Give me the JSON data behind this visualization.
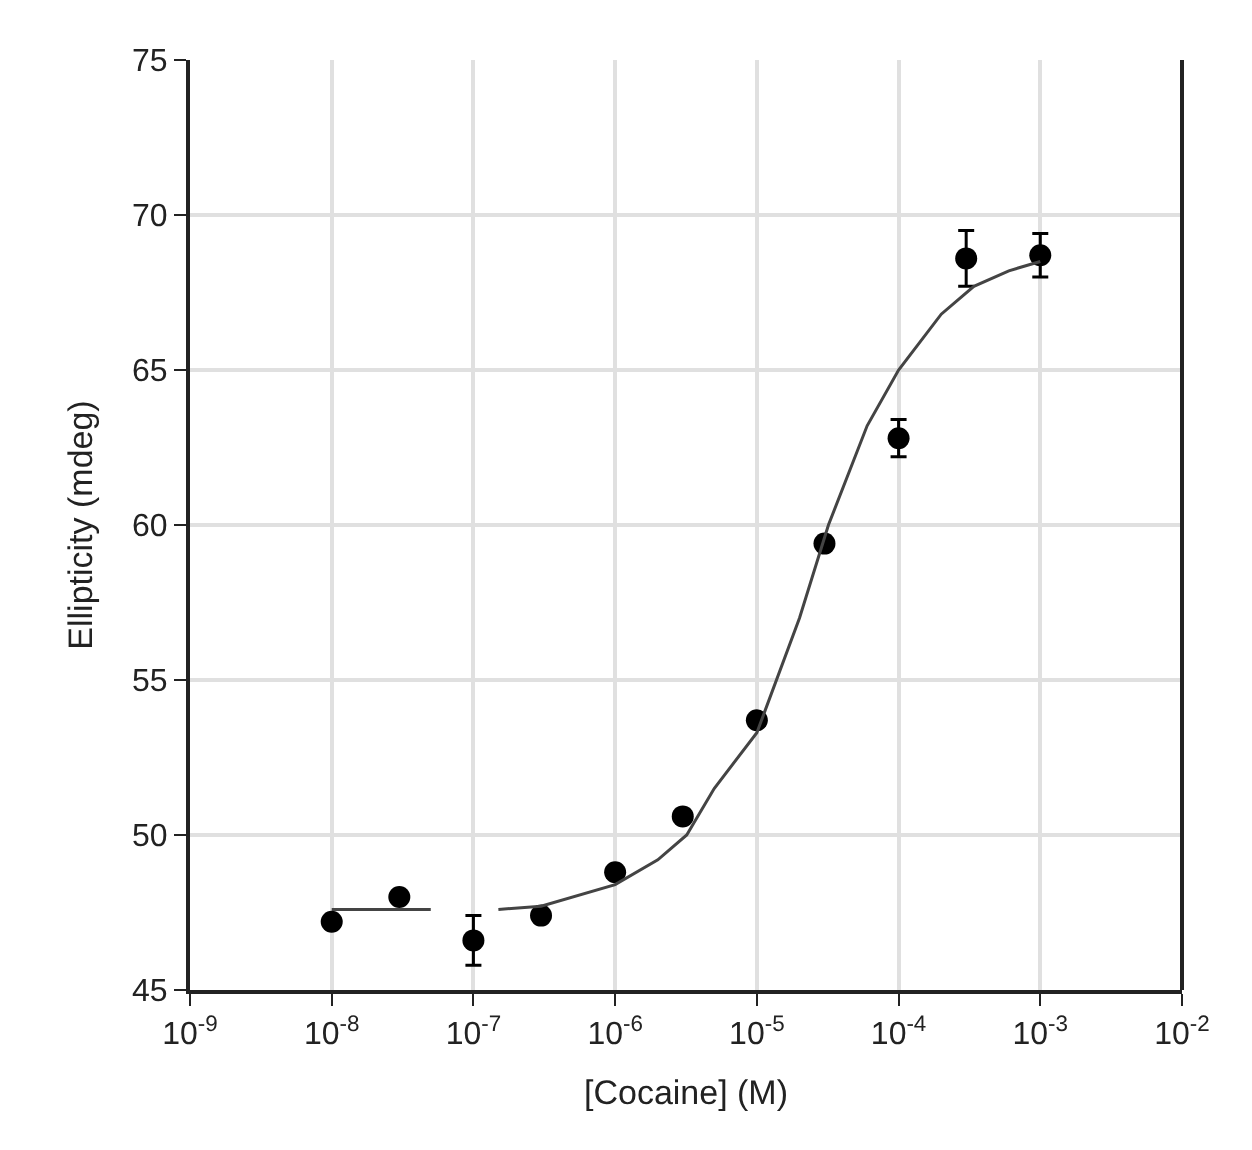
{
  "chart_data": {
    "type": "scatter",
    "xlabel": "[Cocaine] (M)",
    "ylabel": "Ellipticity (mdeg)",
    "log": "x",
    "grid": true,
    "marker": "circle",
    "xlim": [
      1e-09,
      0.01
    ],
    "xticks": [
      {
        "value": 1e-09,
        "label": "10$^{-9}$"
      },
      {
        "value": 1e-08,
        "label": "10$^{-8}$"
      },
      {
        "value": 1e-07,
        "label": "10$^{-7}$"
      },
      {
        "value": 1e-06,
        "label": "10$^{-6}$"
      },
      {
        "value": 1e-05,
        "label": "10$^{-5}$"
      },
      {
        "value": 0.0001,
        "label": "10$^{-4}$"
      },
      {
        "value": 0.001,
        "label": "10$^{-3}$"
      },
      {
        "value": 0.01,
        "label": "10$^{-2}$"
      }
    ],
    "ylim": [
      45,
      75
    ],
    "yticks": [
      45,
      50,
      55,
      60,
      65,
      70,
      75
    ],
    "series": [
      {
        "color": "#000000",
        "x": [
          1e-08,
          3e-08,
          1e-07,
          3e-07,
          1e-06,
          3e-06,
          1e-05,
          3e-05,
          0.0001,
          0.0003,
          0.001
        ],
        "values": [
          47.2,
          48.0,
          46.6,
          47.4,
          48.8,
          50.6,
          53.7,
          59.4,
          62.8,
          68.6,
          68.7
        ],
        "errors": [
          null,
          null,
          0.8,
          null,
          null,
          null,
          null,
          null,
          0.6,
          0.9,
          0.7
        ]
      },
      {
        "type": "line",
        "color": "#444444",
        "marker": "none",
        "line_style": "solid",
        "x": [
          1e-08,
          5e-08,
          6e-08,
          1.5e-07,
          3e-07,
          1e-06,
          2e-06,
          3.2e-06,
          5e-06,
          1e-05,
          2e-05,
          3.2e-05,
          6e-05,
          0.0001,
          0.0002,
          0.00034,
          0.0006,
          0.001
        ],
        "values": [
          47.6,
          47.6,
          null,
          47.6,
          47.7,
          48.4,
          49.2,
          50.0,
          51.5,
          53.3,
          57.0,
          60.0,
          63.2,
          65.0,
          66.8,
          67.7,
          68.2,
          68.5
        ]
      }
    ]
  }
}
